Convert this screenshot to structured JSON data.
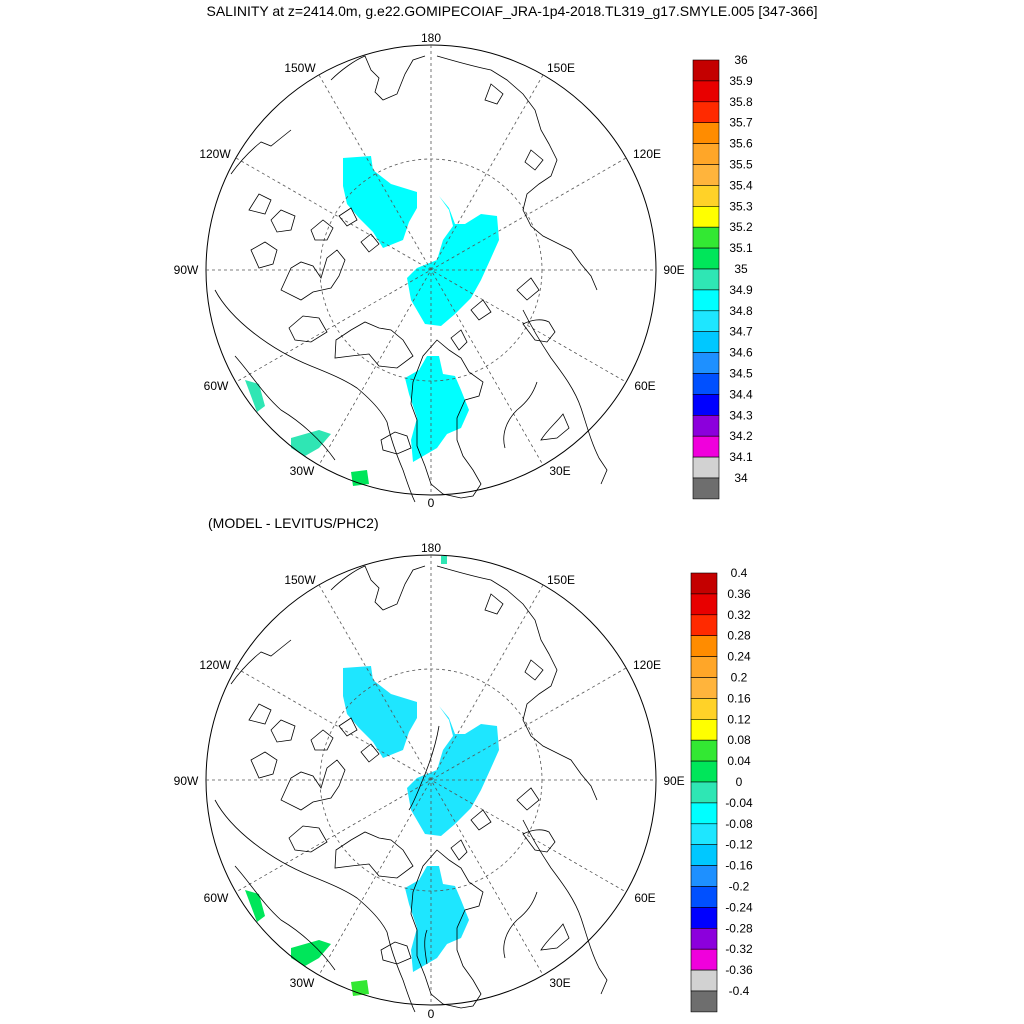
{
  "title": "SALINITY at z=2414.0m, g.e22.GOMIPECOIAF_JRA-1p4-2018.TL319_g17.SMYLE.005 [347-366]",
  "subtitle": "(MODEL - LEVITUS/PHC2)",
  "lon_labels": {
    "top": "180",
    "bottom": "0",
    "left": "90W",
    "right": "90E",
    "upper_left": "150W",
    "upper_right": "150E",
    "left_upper": "120W",
    "right_upper": "120E",
    "left_lower": "60W",
    "right_lower": "60E",
    "lower_left": "30W",
    "lower_right": "30E"
  },
  "colorbar_top": {
    "labels": [
      "36",
      "35.9",
      "35.8",
      "35.7",
      "35.6",
      "35.5",
      "35.4",
      "35.3",
      "35.2",
      "35.1",
      "35",
      "34.9",
      "34.8",
      "34.7",
      "34.6",
      "34.5",
      "34.4",
      "34.3",
      "34.2",
      "34.1",
      "34"
    ],
    "colors": [
      "#c40000",
      "#e80000",
      "#ff2a00",
      "#ff8c00",
      "#ffa628",
      "#ffb43c",
      "#ffd228",
      "#ffff00",
      "#33e833",
      "#00e65a",
      "#2fe6b4",
      "#00ffff",
      "#1ee6ff",
      "#00c8ff",
      "#1e90ff",
      "#0050ff",
      "#0000ff",
      "#8c00dc",
      "#f000dc",
      "#d2d2d2",
      "#6e6e6e"
    ]
  },
  "colorbar_bottom": {
    "labels": [
      "0.4",
      "0.36",
      "0.32",
      "0.28",
      "0.24",
      "0.2",
      "0.16",
      "0.12",
      "0.08",
      "0.04",
      "0",
      "-0.04",
      "-0.08",
      "-0.12",
      "-0.16",
      "-0.2",
      "-0.24",
      "-0.28",
      "-0.32",
      "-0.36",
      "-0.4"
    ],
    "colors": [
      "#c40000",
      "#e80000",
      "#ff2a00",
      "#ff8c00",
      "#ffa628",
      "#ffb43c",
      "#ffd228",
      "#ffff00",
      "#33e833",
      "#00e65a",
      "#2fe6b4",
      "#00ffff",
      "#1ee6ff",
      "#00c8ff",
      "#1e90ff",
      "#0050ff",
      "#0000ff",
      "#8c00dc",
      "#f000dc",
      "#d2d2d2",
      "#6e6e6e"
    ]
  },
  "fill_colors": {
    "top_main": "#00ffff",
    "top_edge": "#2fe6b4",
    "top_south": "#00e65a",
    "bottom_main": "#1ee6ff",
    "bottom_edge": "#00e65a",
    "bottom_south": "#33e833",
    "bottom_north": "#2fe6b4"
  }
}
